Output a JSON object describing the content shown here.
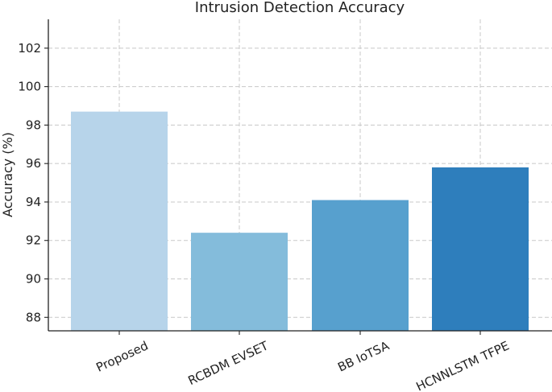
{
  "chart_data": {
    "type": "bar",
    "title": "Intrusion Detection Accuracy",
    "xlabel": "",
    "ylabel": "Accuracy (%)",
    "categories": [
      "Proposed",
      "RCBDM EVSET",
      "BB IoTSA",
      "HCNNLSTM TFPE"
    ],
    "values": [
      98.7,
      92.4,
      94.1,
      95.8
    ],
    "bar_colors": [
      "#b7d4ea",
      "#84bcdb",
      "#57a0ce",
      "#2e7ebc"
    ],
    "ylim": [
      87.3,
      103.5
    ],
    "yticks": [
      88,
      90,
      92,
      94,
      96,
      98,
      100,
      102
    ],
    "grid": true
  }
}
